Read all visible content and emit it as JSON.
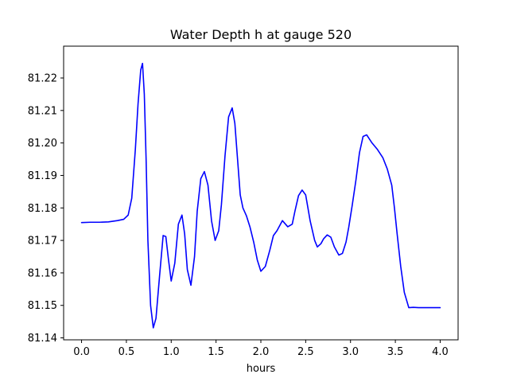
{
  "chart_data": {
    "type": "line",
    "title": "Water Depth h at gauge 520",
    "xlabel": "hours",
    "ylabel": "",
    "xlim": [
      -0.2,
      4.2
    ],
    "ylim": [
      81.1394,
      81.2298
    ],
    "xticks": [
      0.0,
      0.5,
      1.0,
      1.5,
      2.0,
      2.5,
      3.0,
      3.5,
      4.0
    ],
    "xtick_labels": [
      "0.0",
      "0.5",
      "1.0",
      "1.5",
      "2.0",
      "2.5",
      "3.0",
      "3.5",
      "4.0"
    ],
    "yticks": [
      81.14,
      81.15,
      81.16,
      81.17,
      81.18,
      81.19,
      81.2,
      81.21,
      81.22
    ],
    "ytick_labels": [
      "81.14",
      "81.15",
      "81.16",
      "81.17",
      "81.18",
      "81.19",
      "81.20",
      "81.21",
      "81.22"
    ],
    "grid": false,
    "series": [
      {
        "color": "#0000ff",
        "x": [
          0.0,
          0.1,
          0.2,
          0.3,
          0.4,
          0.47,
          0.52,
          0.56,
          0.6,
          0.63,
          0.66,
          0.68,
          0.7,
          0.72,
          0.74,
          0.77,
          0.8,
          0.83,
          0.87,
          0.91,
          0.94,
          0.97,
          1.0,
          1.04,
          1.08,
          1.12,
          1.15,
          1.18,
          1.22,
          1.26,
          1.29,
          1.33,
          1.37,
          1.41,
          1.45,
          1.49,
          1.53,
          1.56,
          1.6,
          1.64,
          1.68,
          1.71,
          1.74,
          1.77,
          1.8,
          1.84,
          1.88,
          1.92,
          1.96,
          2.0,
          2.05,
          2.1,
          2.14,
          2.18,
          2.24,
          2.3,
          2.35,
          2.38,
          2.42,
          2.46,
          2.5,
          2.55,
          2.6,
          2.63,
          2.67,
          2.7,
          2.74,
          2.78,
          2.82,
          2.87,
          2.91,
          2.95,
          2.98,
          3.02,
          3.06,
          3.1,
          3.14,
          3.18,
          3.24,
          3.3,
          3.36,
          3.41,
          3.46,
          3.49,
          3.52,
          3.56,
          3.6,
          3.65,
          3.7,
          3.76,
          3.82,
          3.88,
          3.94,
          4.0
        ],
        "y": [
          81.1755,
          81.1756,
          81.1756,
          81.1757,
          81.1761,
          81.1765,
          81.1778,
          81.183,
          81.198,
          81.212,
          81.2225,
          81.2245,
          81.215,
          81.195,
          81.17,
          81.15,
          81.1431,
          81.146,
          81.159,
          81.1715,
          81.1712,
          81.164,
          81.1575,
          81.163,
          81.175,
          81.1778,
          81.172,
          81.161,
          81.1562,
          81.165,
          81.179,
          81.189,
          81.1912,
          81.187,
          81.176,
          81.17,
          81.173,
          81.181,
          81.196,
          81.208,
          81.2108,
          81.206,
          81.195,
          81.184,
          81.18,
          81.1775,
          81.174,
          81.1695,
          81.164,
          81.1605,
          81.162,
          81.167,
          81.1715,
          81.173,
          81.1761,
          81.1742,
          81.175,
          81.179,
          81.1838,
          81.1855,
          81.184,
          81.176,
          81.17,
          81.168,
          81.169,
          81.1705,
          81.1717,
          81.171,
          81.168,
          81.1655,
          81.166,
          81.1695,
          81.174,
          81.181,
          81.1885,
          81.197,
          81.202,
          81.2025,
          81.2,
          81.198,
          81.1955,
          81.192,
          81.187,
          81.18,
          81.172,
          81.162,
          81.154,
          81.1493,
          81.1494,
          81.1493,
          81.1493,
          81.1493,
          81.1493,
          81.1493
        ]
      }
    ]
  }
}
